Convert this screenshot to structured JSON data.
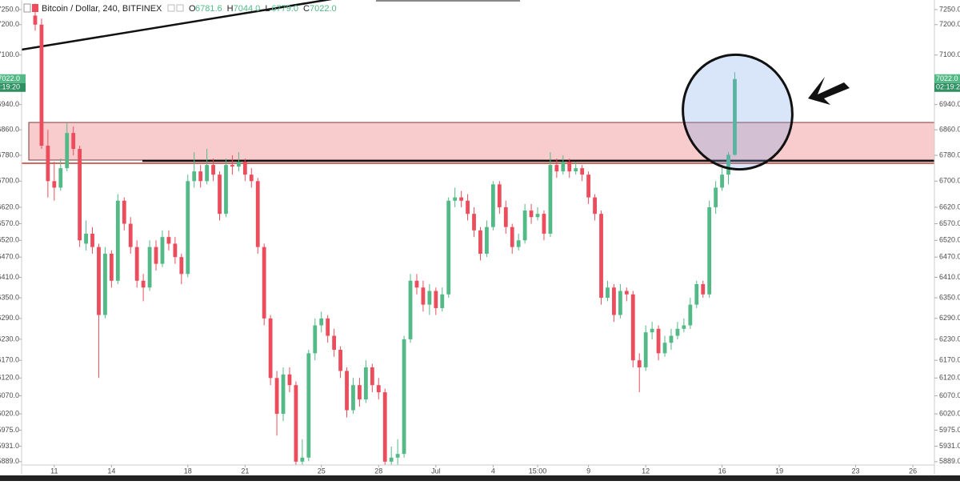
{
  "chart_data": {
    "type": "candlestick",
    "title": "Bitcoin / Dollar, 240, BITFINEX",
    "ohlc_legend": {
      "letters": [
        "O",
        "H",
        "L",
        "C"
      ],
      "values": [
        6781.6,
        7044,
        6779,
        7022
      ],
      "value_labels": [
        "6781.6",
        "7044.0",
        "6779.0",
        "7022.0"
      ]
    },
    "last_price_label": "7022.0",
    "countdown": "02:19:20",
    "up_color": "#53b987",
    "down_color": "#eb4d5c",
    "log_y": true,
    "grid": false,
    "ylim": [
      5880,
      7282
    ],
    "yticks": [
      {
        "value": 7250,
        "label": "7250.0"
      },
      {
        "value": 7200,
        "label": "7200.0"
      },
      {
        "value": 7100,
        "label": "7100.0"
      },
      {
        "value": 6940,
        "label": "6940.0"
      },
      {
        "value": 6860,
        "label": "6860.0"
      },
      {
        "value": 6780,
        "label": "6780.0"
      },
      {
        "value": 6700,
        "label": "6700.0"
      },
      {
        "value": 6620,
        "label": "6620.0"
      },
      {
        "value": 6570,
        "label": "6570.0"
      },
      {
        "value": 6520,
        "label": "6520.0"
      },
      {
        "value": 6470,
        "label": "6470.0"
      },
      {
        "value": 6410,
        "label": "6410.0"
      },
      {
        "value": 6350,
        "label": "6350.0"
      },
      {
        "value": 6290,
        "label": "6290.0"
      },
      {
        "value": 6230,
        "label": "6230.0"
      },
      {
        "value": 6170,
        "label": "6170.0"
      },
      {
        "value": 6120,
        "label": "6120.0"
      },
      {
        "value": 6070,
        "label": "6070.0"
      },
      {
        "value": 6020,
        "label": "6020.0"
      },
      {
        "value": 5975,
        "label": "5975.0"
      },
      {
        "value": 5931,
        "label": "5931.0"
      },
      {
        "value": 5889,
        "label": "5889.0"
      }
    ],
    "categories": [
      null,
      null,
      null,
      "11",
      null,
      null,
      null,
      null,
      null,
      null,
      null,
      null,
      "14",
      null,
      null,
      null,
      null,
      null,
      null,
      null,
      null,
      null,
      null,
      null,
      "18",
      null,
      null,
      null,
      null,
      null,
      null,
      null,
      null,
      "21",
      null,
      null,
      null,
      null,
      null,
      null,
      null,
      null,
      null,
      null,
      null,
      "25",
      null,
      null,
      null,
      null,
      null,
      null,
      null,
      null,
      "28",
      null,
      null,
      null,
      null,
      null,
      null,
      null,
      null,
      "Jul",
      null,
      null,
      null,
      null,
      null,
      null,
      null,
      null,
      "4",
      null,
      null,
      null,
      null,
      null,
      null,
      "15:00",
      null,
      null,
      null,
      null,
      null,
      null,
      null,
      "9",
      null,
      null,
      null,
      null,
      null,
      null,
      null,
      null,
      "12",
      null,
      null,
      null,
      null,
      null,
      null,
      null,
      null,
      null,
      null,
      null,
      "16",
      null,
      null,
      null,
      null,
      null,
      null,
      null,
      null,
      "19",
      null,
      null,
      null,
      null,
      null,
      null,
      null,
      null,
      null,
      null,
      null,
      "23",
      null,
      null,
      null,
      null,
      null,
      null,
      null,
      null,
      "26",
      null
    ],
    "open": [
      7230,
      7200,
      6810,
      6700,
      6680,
      6740,
      6850,
      6800,
      6510,
      6540,
      6500,
      6300,
      6480,
      6400,
      6640,
      6570,
      6500,
      6400,
      6380,
      6500,
      6450,
      6530,
      6510,
      6470,
      6420,
      6700,
      6730,
      6700,
      6750,
      6720,
      6600,
      6750,
      6745,
      6760,
      6720,
      6700,
      6500,
      6290,
      6120,
      6020,
      6130,
      6100,
      5889,
      5900,
      6190,
      6270,
      6290,
      6240,
      6200,
      6140,
      6030,
      6100,
      6060,
      6150,
      6100,
      6080,
      5889,
      5900,
      5910,
      6230,
      6400,
      6380,
      6330,
      6370,
      6320,
      6360,
      6640,
      6650,
      6640,
      6600,
      6550,
      6480,
      6560,
      6690,
      6620,
      6560,
      6500,
      6520,
      6610,
      6590,
      6600,
      6540,
      6750,
      6730,
      6760,
      6730,
      6740,
      6720,
      6650,
      6600,
      6350,
      6380,
      6300,
      6370,
      6360,
      6170,
      6150,
      6250,
      6260,
      6190,
      6220,
      6240,
      6260,
      6270,
      6330,
      6390,
      6360,
      6620,
      6680,
      6720,
      6781.6,
      null,
      null,
      null,
      null,
      null,
      null,
      null,
      null,
      null,
      null,
      null,
      null,
      null,
      null,
      null,
      null,
      null,
      null,
      null,
      null,
      null,
      null,
      null,
      null,
      null,
      null,
      null,
      null,
      null
    ],
    "high": [
      7270,
      7220,
      6860,
      6760,
      6770,
      6880,
      6870,
      6810,
      6580,
      6560,
      6510,
      6500,
      6490,
      6660,
      6650,
      6590,
      6520,
      6420,
      6520,
      6520,
      6550,
      6550,
      6530,
      6480,
      6720,
      6790,
      6750,
      6800,
      6770,
      6730,
      6770,
      6780,
      6790,
      6770,
      6740,
      6710,
      6510,
      6300,
      6140,
      6150,
      6150,
      6110,
      5950,
      6200,
      6290,
      6310,
      6300,
      6260,
      6210,
      6150,
      6120,
      6120,
      6170,
      6160,
      6120,
      6090,
      5930,
      5950,
      6240,
      6420,
      6420,
      6400,
      6390,
      6380,
      6380,
      6650,
      6680,
      6670,
      6660,
      6620,
      6560,
      6580,
      6700,
      6700,
      6640,
      6570,
      6540,
      6630,
      6630,
      6620,
      6610,
      6790,
      6770,
      6780,
      6770,
      6760,
      6750,
      6730,
      6660,
      6610,
      6400,
      6390,
      6390,
      6380,
      6370,
      6190,
      6270,
      6280,
      6270,
      6240,
      6260,
      6280,
      6290,
      6350,
      6400,
      6400,
      6640,
      6700,
      6750,
      6790,
      7044,
      null,
      null,
      null,
      null,
      null,
      null,
      null,
      null,
      null,
      null,
      null,
      null,
      null,
      null,
      null,
      null,
      null,
      null,
      null,
      null,
      null,
      null,
      null,
      null,
      null,
      null,
      null,
      null,
      null
    ],
    "low": [
      7180,
      6800,
      6650,
      6640,
      6670,
      6730,
      6780,
      6500,
      6490,
      6480,
      6120,
      6290,
      6380,
      6390,
      6550,
      6480,
      6380,
      6340,
      6370,
      6430,
      6440,
      6490,
      6450,
      6390,
      6410,
      6680,
      6680,
      6690,
      6700,
      6580,
      6590,
      6720,
      6730,
      6700,
      6680,
      6480,
      6270,
      6100,
      5960,
      6000,
      6080,
      5870,
      5870,
      5890,
      6170,
      6250,
      6220,
      6180,
      6120,
      6010,
      6020,
      6040,
      6050,
      6080,
      6060,
      5870,
      5870,
      5880,
      5900,
      6220,
      6360,
      6310,
      6300,
      6300,
      6310,
      6350,
      6620,
      6620,
      6580,
      6530,
      6460,
      6470,
      6550,
      6600,
      6540,
      6480,
      6490,
      6510,
      6570,
      6580,
      6520,
      6530,
      6710,
      6720,
      6710,
      6720,
      6700,
      6630,
      6580,
      6330,
      6340,
      6280,
      6290,
      6340,
      6150,
      6080,
      6140,
      6230,
      6170,
      6180,
      6200,
      6230,
      6250,
      6260,
      6320,
      6350,
      6350,
      6600,
      6670,
      6690,
      6779,
      null,
      null,
      null,
      null,
      null,
      null,
      null,
      null,
      null,
      null,
      null,
      null,
      null,
      null,
      null,
      null,
      null,
      null,
      null,
      null,
      null,
      null,
      null,
      null,
      null,
      null,
      null,
      null,
      null
    ],
    "close": [
      7200,
      6810,
      6700,
      6680,
      6740,
      6850,
      6800,
      6520,
      6540,
      6500,
      6300,
      6480,
      6400,
      6640,
      6570,
      6500,
      6400,
      6380,
      6500,
      6450,
      6530,
      6510,
      6470,
      6420,
      6700,
      6730,
      6700,
      6750,
      6720,
      6600,
      6750,
      6745,
      6760,
      6720,
      6700,
      6500,
      6290,
      6120,
      6020,
      6130,
      6100,
      5889,
      5900,
      6190,
      6270,
      6290,
      6240,
      6200,
      6140,
      6030,
      6100,
      6060,
      6150,
      6100,
      6080,
      5889,
      5900,
      5910,
      6230,
      6400,
      6380,
      6330,
      6370,
      6320,
      6360,
      6640,
      6650,
      6640,
      6600,
      6550,
      6480,
      6560,
      6690,
      6620,
      6560,
      6500,
      6520,
      6610,
      6590,
      6600,
      6540,
      6750,
      6730,
      6760,
      6730,
      6740,
      6720,
      6650,
      6600,
      6350,
      6380,
      6300,
      6370,
      6360,
      6170,
      6150,
      6250,
      6260,
      6190,
      6220,
      6240,
      6260,
      6270,
      6330,
      6390,
      6360,
      6620,
      6680,
      6720,
      6781.6,
      7022,
      null,
      null,
      null,
      null,
      null,
      null,
      null,
      null,
      null,
      null,
      null,
      null,
      null,
      null,
      null,
      null,
      null,
      null,
      null,
      null,
      null,
      null,
      null,
      null,
      null,
      null,
      null,
      null,
      null
    ]
  }
}
